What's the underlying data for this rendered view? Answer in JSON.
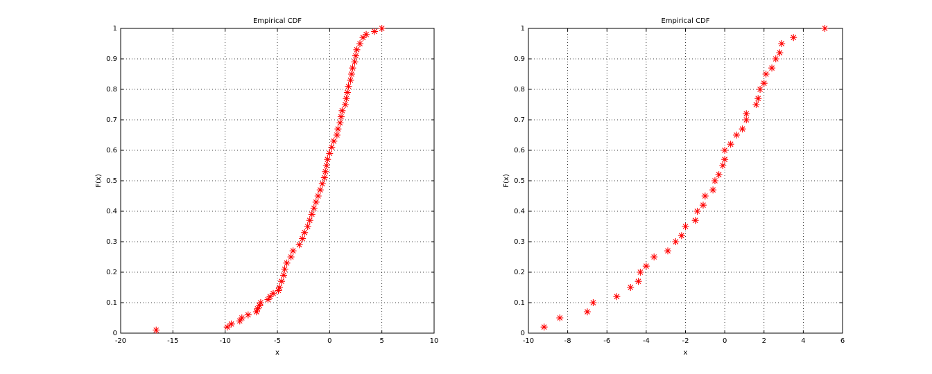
{
  "chart_data": [
    {
      "type": "scatter",
      "title": "Empirical CDF",
      "xlabel": "x",
      "ylabel": "F(x)",
      "color": "#ff0000",
      "marker": "*",
      "grid": true,
      "xlim": [
        -20,
        10
      ],
      "ylim": [
        0,
        1
      ],
      "xticks": [
        -20,
        -15,
        -10,
        -5,
        0,
        5,
        10
      ],
      "yticks": [
        0,
        0.1,
        0.2,
        0.3,
        0.4,
        0.5,
        0.6,
        0.7,
        0.8,
        0.9,
        1
      ],
      "x": [
        -16.6,
        -9.8,
        -9.4,
        -8.6,
        -8.4,
        -7.8,
        -7.0,
        -6.9,
        -6.7,
        -6.6,
        -5.9,
        -5.7,
        -5.4,
        -4.9,
        -4.8,
        -4.6,
        -4.4,
        -4.3,
        -4.1,
        -3.7,
        -3.5,
        -2.9,
        -2.6,
        -2.4,
        -2.1,
        -1.9,
        -1.7,
        -1.5,
        -1.3,
        -1.1,
        -0.9,
        -0.7,
        -0.5,
        -0.4,
        -0.3,
        -0.2,
        0.0,
        0.2,
        0.4,
        0.7,
        0.8,
        1.0,
        1.1,
        1.2,
        1.5,
        1.6,
        1.7,
        1.8,
        2.0,
        2.1,
        2.2,
        2.4,
        2.5,
        2.6,
        2.9,
        3.2,
        3.5,
        4.3,
        5.0
      ],
      "values": [
        0.01,
        0.02,
        0.03,
        0.04,
        0.05,
        0.06,
        0.07,
        0.08,
        0.09,
        0.1,
        0.11,
        0.12,
        0.13,
        0.14,
        0.15,
        0.17,
        0.19,
        0.21,
        0.23,
        0.25,
        0.27,
        0.29,
        0.31,
        0.33,
        0.35,
        0.37,
        0.39,
        0.41,
        0.43,
        0.45,
        0.47,
        0.49,
        0.51,
        0.53,
        0.55,
        0.57,
        0.59,
        0.61,
        0.63,
        0.65,
        0.67,
        0.69,
        0.71,
        0.73,
        0.75,
        0.77,
        0.79,
        0.81,
        0.83,
        0.85,
        0.87,
        0.89,
        0.91,
        0.93,
        0.95,
        0.97,
        0.98,
        0.99,
        1.0
      ]
    },
    {
      "type": "scatter",
      "title": "Empirical CDF",
      "xlabel": "x",
      "ylabel": "F(x)",
      "color": "#ff0000",
      "marker": "*",
      "grid": true,
      "xlim": [
        -10,
        6
      ],
      "ylim": [
        0,
        1
      ],
      "xticks": [
        -10,
        -8,
        -6,
        -4,
        -2,
        0,
        2,
        4,
        6
      ],
      "yticks": [
        0,
        0.1,
        0.2,
        0.3,
        0.4,
        0.5,
        0.6,
        0.7,
        0.8,
        0.9,
        1
      ],
      "x": [
        -9.2,
        -8.4,
        -7.0,
        -6.7,
        -5.5,
        -4.8,
        -4.4,
        -4.3,
        -4.0,
        -3.6,
        -2.9,
        -2.5,
        -2.2,
        -2.0,
        -1.5,
        -1.4,
        -1.1,
        -1.0,
        -0.6,
        -0.5,
        -0.3,
        -0.1,
        0.0,
        0.0,
        0.3,
        0.6,
        0.9,
        1.1,
        1.1,
        1.6,
        1.7,
        1.8,
        2.0,
        2.1,
        2.4,
        2.6,
        2.8,
        2.9,
        3.5,
        5.1
      ],
      "values": [
        0.02,
        0.05,
        0.07,
        0.1,
        0.12,
        0.15,
        0.17,
        0.2,
        0.22,
        0.25,
        0.27,
        0.3,
        0.32,
        0.35,
        0.37,
        0.4,
        0.42,
        0.45,
        0.47,
        0.5,
        0.52,
        0.55,
        0.57,
        0.6,
        0.62,
        0.65,
        0.67,
        0.7,
        0.72,
        0.75,
        0.77,
        0.8,
        0.82,
        0.85,
        0.87,
        0.9,
        0.92,
        0.95,
        0.97,
        1.0
      ]
    }
  ]
}
